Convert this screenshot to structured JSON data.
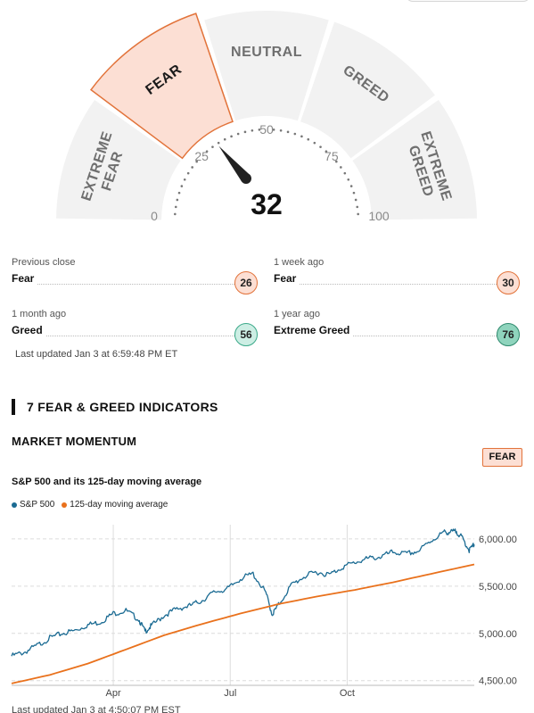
{
  "gauge": {
    "value": 32,
    "segments": [
      "EXTREME FEAR",
      "FEAR",
      "NEUTRAL",
      "GREED",
      "EXTREME GREED"
    ],
    "active_segment": "FEAR",
    "ticks": [
      "0",
      "25",
      "50",
      "75",
      "100"
    ],
    "colors": {
      "segment": "#f2f2f2",
      "active_fill": "#fcdfd4",
      "active_stroke": "#e2733a",
      "text": "#6f6f6f",
      "needle": "#222222"
    }
  },
  "previous": [
    {
      "label": "Previous close",
      "rating": "Fear",
      "value": "26",
      "type": "fear"
    },
    {
      "label": "1 week ago",
      "rating": "Fear",
      "value": "30",
      "type": "fear"
    },
    {
      "label": "1 month ago",
      "rating": "Greed",
      "value": "56",
      "type": "greed"
    },
    {
      "label": "1 year ago",
      "rating": "Extreme Greed",
      "value": "76",
      "type": "xgreed"
    }
  ],
  "last_updated": "Last updated Jan 3 at 6:59:48 PM ET",
  "indicators_heading": "7 FEAR & GREED INDICATORS",
  "momentum": {
    "title": "MARKET MOMENTUM",
    "badge": "FEAR",
    "chart_title": "S&P 500 and its 125-day moving average",
    "last_updated": "Last updated Jan 3 at 4:50:07 PM EST"
  },
  "chart_data": {
    "type": "line",
    "title": "S&P 500 and its 125-day moving average",
    "x_ticks": [
      "Apr",
      "Jul",
      "Oct"
    ],
    "x_tick_days": [
      80,
      172,
      264
    ],
    "y_ticks": [
      "6,000.00",
      "5,500.00",
      "5,000.00",
      "4,500.00"
    ],
    "y_tick_values": [
      6000,
      5500,
      5000,
      4500
    ],
    "ylim": [
      4450,
      6150
    ],
    "xlim": [
      0,
      364
    ],
    "grid": true,
    "series": [
      {
        "name": "S&P 500",
        "color": "#1b6b93",
        "x": [
          0,
          10,
          20,
          30,
          40,
          50,
          60,
          70,
          80,
          90,
          100,
          105,
          110,
          120,
          130,
          140,
          150,
          160,
          170,
          180,
          190,
          200,
          205,
          210,
          220,
          230,
          240,
          250,
          260,
          270,
          280,
          290,
          300,
          310,
          320,
          330,
          340,
          345,
          350,
          355,
          360,
          364
        ],
        "values": [
          4760,
          4800,
          4870,
          4950,
          5000,
          5030,
          5090,
          5120,
          5210,
          5240,
          5150,
          5020,
          5080,
          5190,
          5260,
          5290,
          5350,
          5440,
          5470,
          5580,
          5630,
          5430,
          5200,
          5300,
          5510,
          5600,
          5650,
          5620,
          5700,
          5750,
          5790,
          5810,
          5860,
          5840,
          5870,
          5980,
          6070,
          6070,
          6080,
          6000,
          5880,
          5940
        ]
      },
      {
        "name": "125-day moving average",
        "color": "#e9711c",
        "x": [
          0,
          30,
          60,
          90,
          120,
          150,
          180,
          210,
          240,
          270,
          300,
          330,
          364
        ],
        "values": [
          4470,
          4560,
          4680,
          4830,
          4980,
          5100,
          5210,
          5310,
          5390,
          5460,
          5540,
          5630,
          5730
        ]
      }
    ]
  }
}
